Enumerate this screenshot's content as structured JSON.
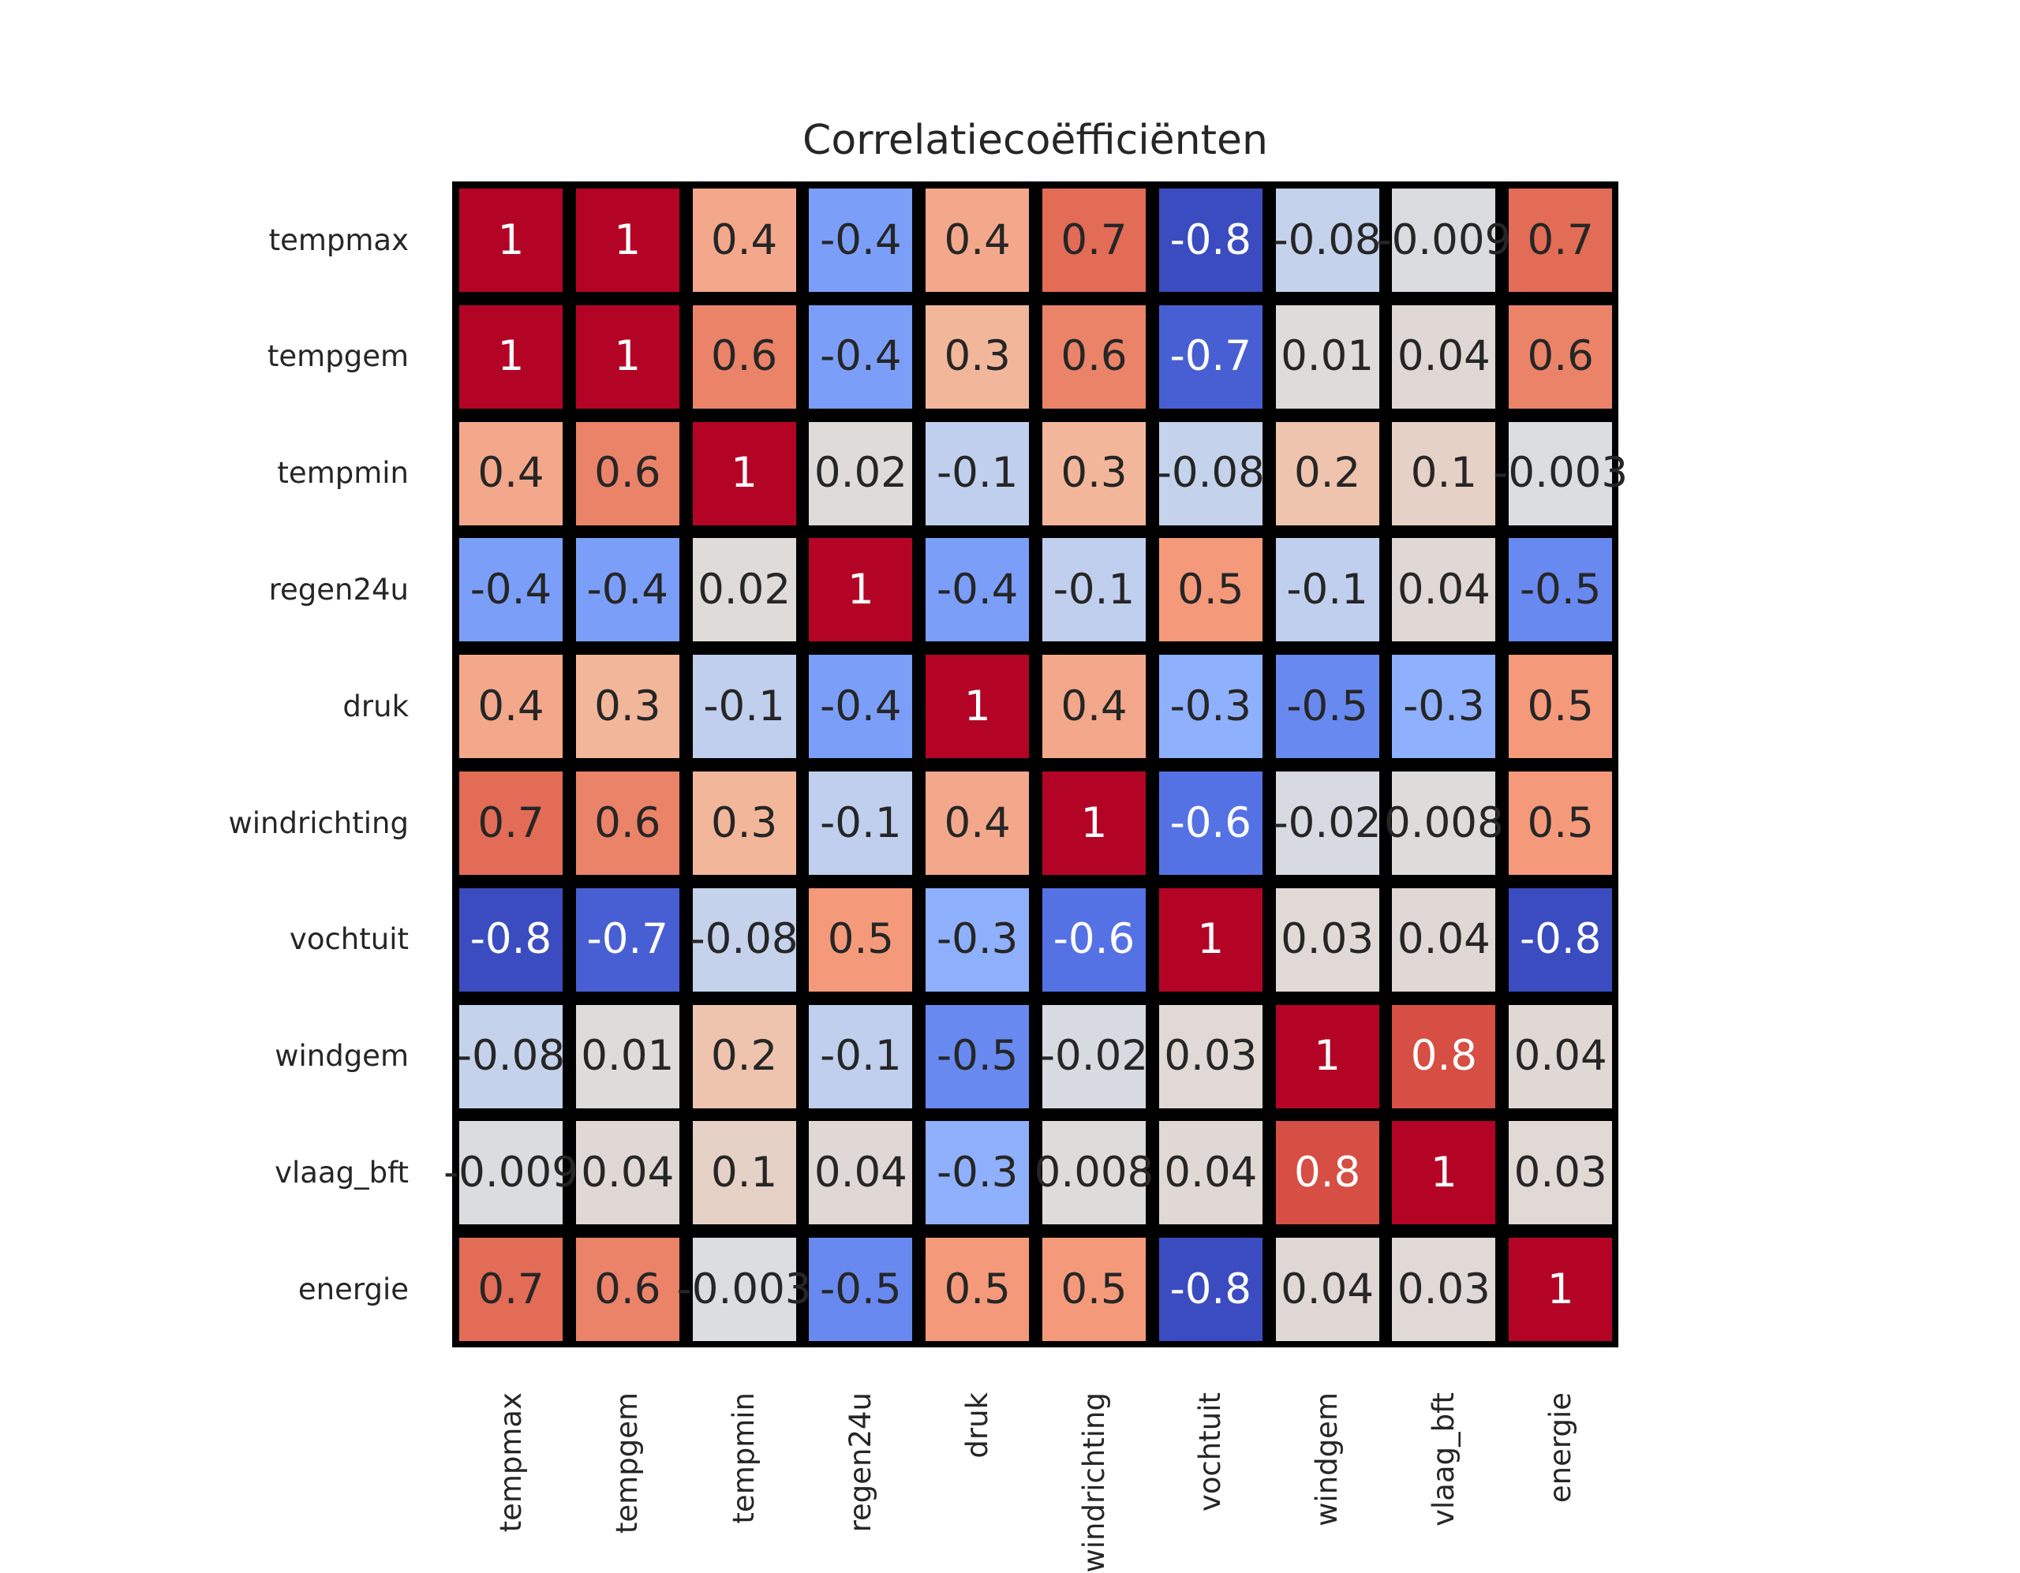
{
  "chart_data": {
    "type": "heatmap",
    "title": "Correlatiecoëfficiënten",
    "xlabel": "",
    "ylabel": "",
    "colormap": "coolwarm",
    "value_range": [
      -0.8,
      1
    ],
    "colors": {
      "low": "#3b4cc0",
      "mid": "#dddddd",
      "high": "#b40426",
      "cell_border": "#000000",
      "text_dark": "#262626",
      "text_light": "#ffffff"
    },
    "rows": [
      "tempmax",
      "tempgem",
      "tempmin",
      "regen24u",
      "druk",
      "windrichting",
      "vochtuit",
      "windgem",
      "vlaag_bft",
      "energie"
    ],
    "columns": [
      "tempmax",
      "tempgem",
      "tempmin",
      "regen24u",
      "druk",
      "windrichting",
      "vochtuit",
      "windgem",
      "vlaag_bft",
      "energie"
    ],
    "labels": [
      [
        "1",
        "1",
        "0.4",
        "-0.4",
        "0.4",
        "0.7",
        "-0.8",
        "-0.08",
        "-0.009",
        "0.7"
      ],
      [
        "1",
        "1",
        "0.6",
        "-0.4",
        "0.3",
        "0.6",
        "-0.7",
        "0.01",
        "0.04",
        "0.6"
      ],
      [
        "0.4",
        "0.6",
        "1",
        "0.02",
        "-0.1",
        "0.3",
        "-0.08",
        "0.2",
        "0.1",
        "-0.003"
      ],
      [
        "-0.4",
        "-0.4",
        "0.02",
        "1",
        "-0.4",
        "-0.1",
        "0.5",
        "-0.1",
        "0.04",
        "-0.5"
      ],
      [
        "0.4",
        "0.3",
        "-0.1",
        "-0.4",
        "1",
        "0.4",
        "-0.3",
        "-0.5",
        "-0.3",
        "0.5"
      ],
      [
        "0.7",
        "0.6",
        "0.3",
        "-0.1",
        "0.4",
        "1",
        "-0.6",
        "-0.02",
        "0.008",
        "0.5"
      ],
      [
        "-0.8",
        "-0.7",
        "-0.08",
        "0.5",
        "-0.3",
        "-0.6",
        "1",
        "0.03",
        "0.04",
        "-0.8"
      ],
      [
        "-0.08",
        "0.01",
        "0.2",
        "-0.1",
        "-0.5",
        "-0.02",
        "0.03",
        "1",
        "0.8",
        "0.04"
      ],
      [
        "-0.009",
        "0.04",
        "0.1",
        "0.04",
        "-0.3",
        "0.008",
        "0.04",
        "0.8",
        "1",
        "0.03"
      ],
      [
        "0.7",
        "0.6",
        "-0.003",
        "-0.5",
        "0.5",
        "0.5",
        "-0.8",
        "0.04",
        "0.03",
        "1"
      ]
    ]
  }
}
